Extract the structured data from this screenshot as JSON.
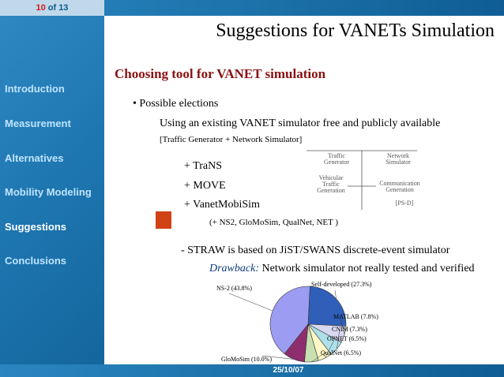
{
  "header": {
    "current_page": "10",
    "of_label": "of",
    "total_pages": "13"
  },
  "title": "Suggestions for VANETs Simulation",
  "footer": {
    "date": "25/10/07"
  },
  "sidebar": {
    "items": [
      {
        "label": "Introduction"
      },
      {
        "label": "Measurement"
      },
      {
        "label": "Alternatives"
      },
      {
        "label": "Mobility Modeling"
      },
      {
        "label": "Suggestions"
      },
      {
        "label": "Conclusions"
      }
    ],
    "active": "Suggestions"
  },
  "content": {
    "heading": "Choosing tool for VANET simulation",
    "bullet_symbol": "•",
    "bullet_text": "Possible elections",
    "line2": "Using an existing VANET simulator free and publicly available",
    "line3": "[Traffic Generator + Network Simulator]",
    "tools": [
      "+ TraNS",
      "+ MOVE",
      "+ VanetMobiSim"
    ],
    "others": "(+ NS2, GloMoSim, QualNet, NET )",
    "straw": "- STRAW is based on JiST/SWANS discrete-event simulator",
    "drawback_label": "Drawback:",
    "drawback_text": " Network simulator not really tested and verified"
  },
  "diagram": {
    "traffic_generator": [
      "Traffic",
      "Generator"
    ],
    "network_simulator": [
      "Network",
      "Simulator"
    ],
    "vehicular_traffic": [
      "Vehicular",
      "Traffic",
      "Generation"
    ],
    "communication": [
      "Communication",
      "Generation"
    ],
    "ref": "[PS-D]"
  },
  "colors": {
    "heading": "#8b1010",
    "accent_square": "#d14215",
    "sidebar": "#1e76b0"
  },
  "chart_data": {
    "type": "pie",
    "slices": [
      {
        "label": "Self-developed (27.3%)",
        "value": 27.3,
        "color": "#2f5fb8"
      },
      {
        "label": "MATLAB (7.8%)",
        "value": 7.8,
        "color": "#d8d8f2"
      },
      {
        "label": "CNIM (7.3%)",
        "value": 7.3,
        "color": "#aee0ea"
      },
      {
        "label": "OPNET (6.5%)",
        "value": 6.5,
        "color": "#fff7c7"
      },
      {
        "label": "QualNet (6.5%)",
        "value": 6.5,
        "color": "#c8e0b0"
      },
      {
        "label": "GloMoSim (10.0%)",
        "value": 10.0,
        "color": "#8e2e6e"
      },
      {
        "label": "NS-2 (43.8%)",
        "value": 43.8,
        "color": "#9c9cf2"
      }
    ]
  }
}
